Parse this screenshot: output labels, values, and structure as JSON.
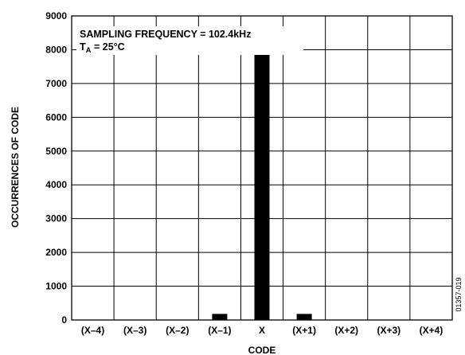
{
  "chart_data": {
    "type": "bar",
    "categories": [
      "(X–4)",
      "(X–3)",
      "(X–2)",
      "(X–1)",
      "X",
      "(X+1)",
      "(X+2)",
      "(X+3)",
      "(X+4)"
    ],
    "values": [
      0,
      0,
      0,
      180,
      8100,
      180,
      0,
      0,
      0
    ],
    "xlabel": "CODE",
    "ylabel": "OCCURRENCES OF CODE",
    "ylim": [
      0,
      9000
    ],
    "yticks": [
      0,
      1000,
      2000,
      3000,
      4000,
      5000,
      6000,
      7000,
      8000,
      9000
    ],
    "grid": true,
    "bar_color": "#000000",
    "annotations": {
      "line1": "SAMPLING FREQUENCY = 102.4kHz",
      "line2_main": "T",
      "line2_sub": "A",
      "line2_rest": " = 25°C"
    },
    "figure_id": "01357-019"
  }
}
